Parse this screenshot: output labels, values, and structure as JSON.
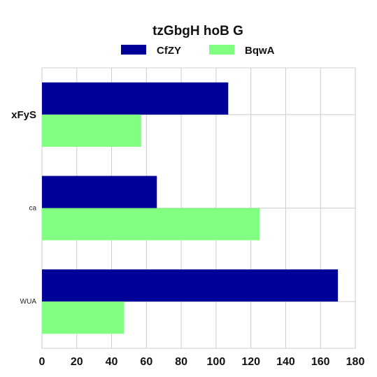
{
  "chart_data": {
    "type": "bar",
    "orientation": "horizontal",
    "title": "tzGbgH hoB  G",
    "categories": [
      "xFyS",
      "ca",
      "WUA"
    ],
    "series": [
      {
        "name": "CfZY",
        "values": [
          107,
          66,
          170
        ],
        "color": "#000099"
      },
      {
        "name": "BqwA",
        "values": [
          57,
          125,
          47
        ],
        "color": "#80ff80"
      }
    ],
    "xlim": [
      0,
      180
    ],
    "xticks": [
      0,
      20,
      40,
      60,
      80,
      100,
      120,
      140,
      160,
      180
    ],
    "grid": true,
    "legend_position": "top-center"
  }
}
